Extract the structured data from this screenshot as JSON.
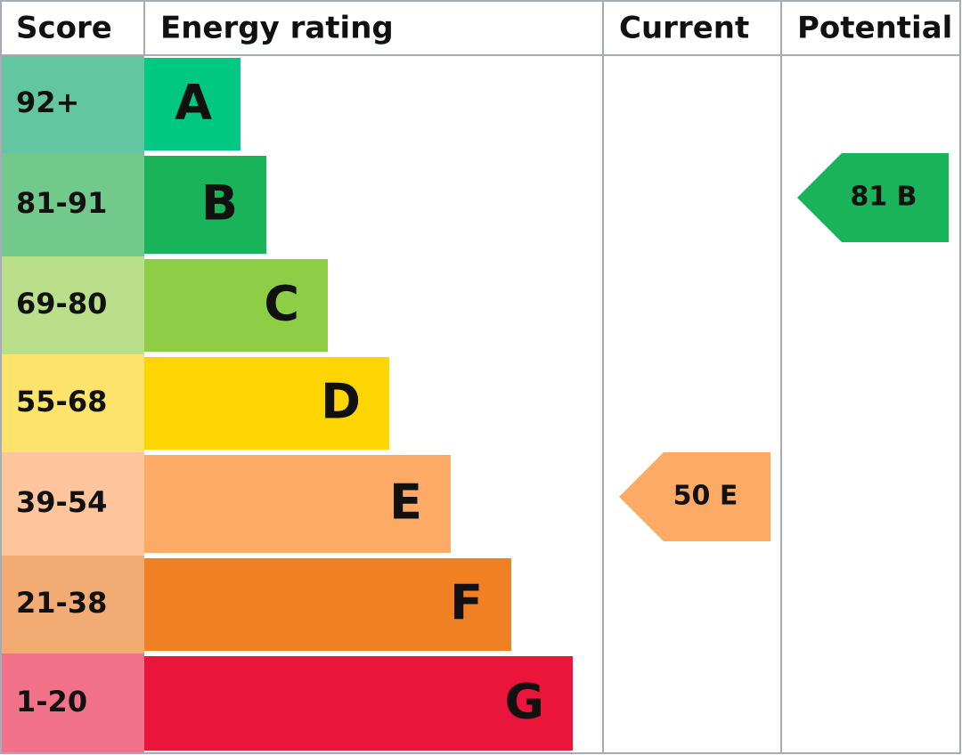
{
  "header": {
    "score": "Score",
    "rating": "Energy rating",
    "current": "Current",
    "potential": "Potential"
  },
  "rows": [
    {
      "score": "92+",
      "letter": "A",
      "score_color": "#63c6a2",
      "color": "#00c781"
    },
    {
      "score": "81-91",
      "letter": "B",
      "score_color": "#72c98c",
      "color": "#19b459"
    },
    {
      "score": "69-80",
      "letter": "C",
      "score_color": "#badf8a",
      "color": "#8dce46"
    },
    {
      "score": "55-68",
      "letter": "D",
      "score_color": "#fce46c",
      "color": "#ffd500"
    },
    {
      "score": "39-54",
      "letter": "E",
      "score_color": "#fec49c",
      "color": "#fcaa65"
    },
    {
      "score": "21-38",
      "letter": "F",
      "score_color": "#f2ab72",
      "color": "#ef8023"
    },
    {
      "score": "1-20",
      "letter": "G",
      "score_color": "#f2728a",
      "color": "#e9153b"
    }
  ],
  "current": {
    "label": "50 E",
    "color": "#fcaa65"
  },
  "potential": {
    "label": "81 B",
    "color": "#19b459"
  }
}
